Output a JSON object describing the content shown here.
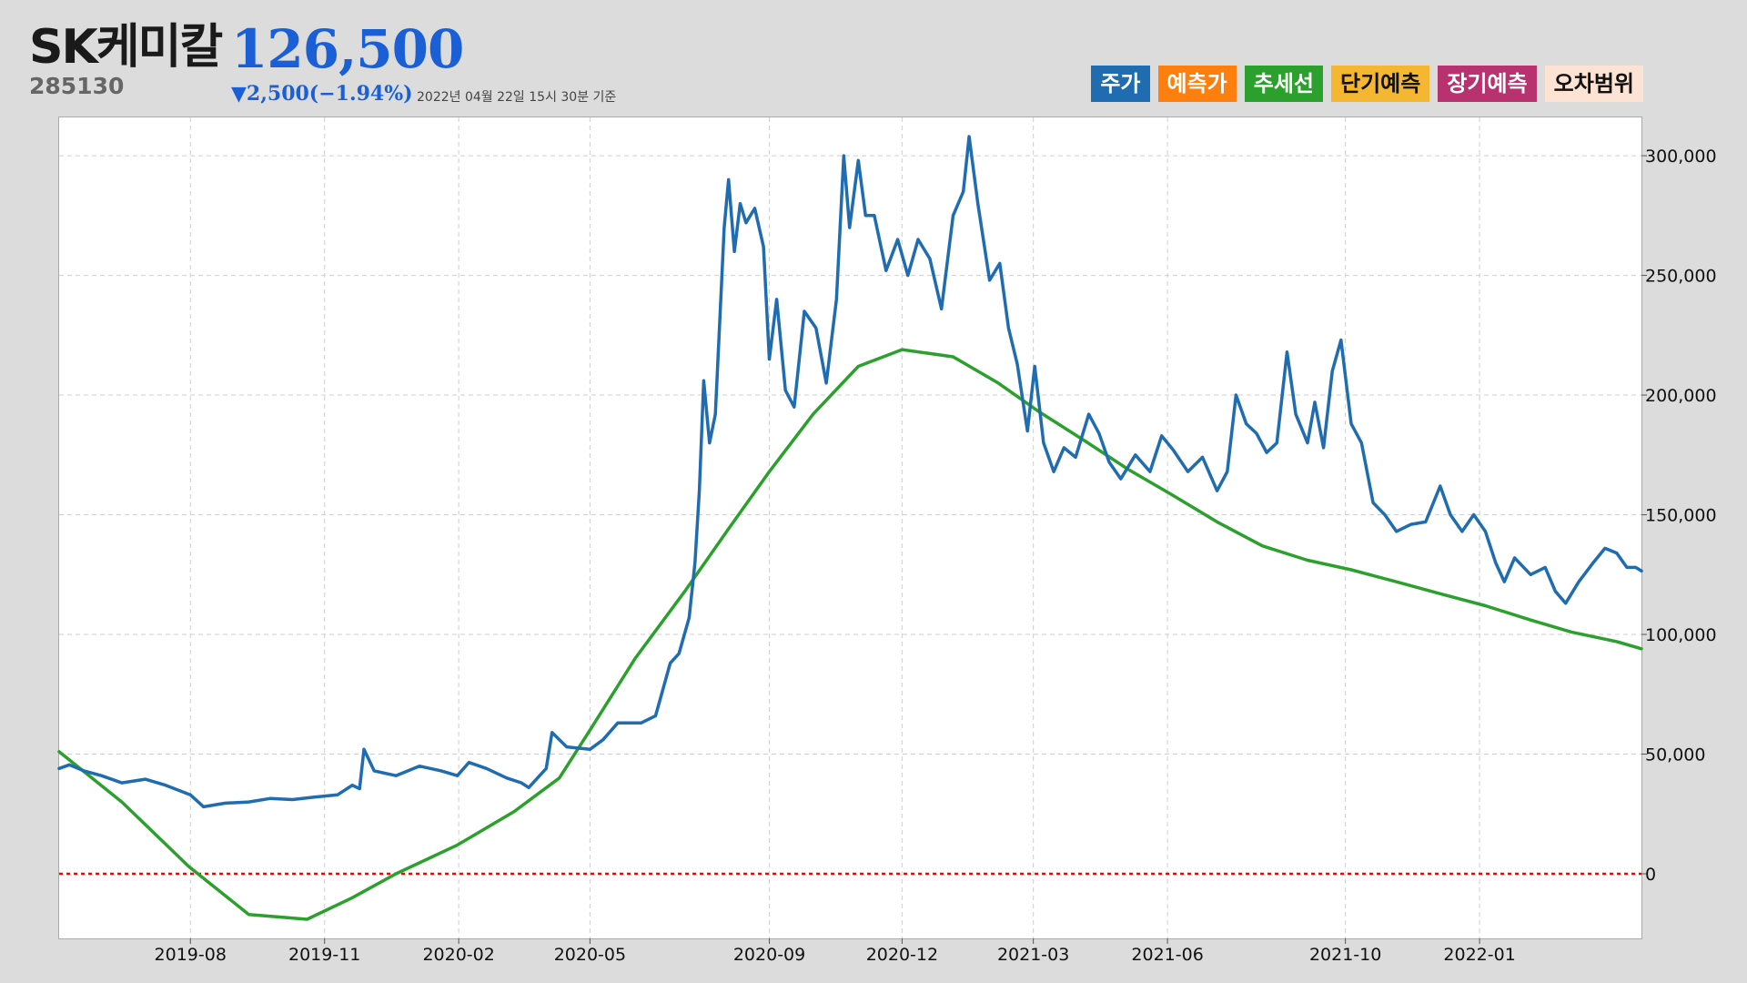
{
  "stock": {
    "name": "SK케미칼",
    "code": "285130",
    "price": "126,500",
    "change": "▼2,500(−1.94%)",
    "as_of": "2022년 04월 22일 15시 30분 기준"
  },
  "legend": [
    {
      "label": "주가",
      "color": "#1f6cb0",
      "text_color": "#ffffff"
    },
    {
      "label": "예측가",
      "color": "#ff7f0e",
      "text_color": "#ffffff"
    },
    {
      "label": "추세선",
      "color": "#2ca02c",
      "text_color": "#ffffff"
    },
    {
      "label": "단기예측",
      "color": "#f5b731",
      "text_color": "#111111"
    },
    {
      "label": "장기예측",
      "color": "#b83270",
      "text_color": "#ffffff"
    },
    {
      "label": "오차범위",
      "color": "#fde3d4",
      "text_color": "#111111"
    }
  ],
  "chart_data": {
    "type": "line",
    "x_ticks": [
      "2019-08",
      "2019-11",
      "2020-02",
      "2020-05",
      "2020-09",
      "2020-12",
      "2021-03",
      "2021-06",
      "2021-10",
      "2022-01"
    ],
    "y_ticks": [
      "0",
      "50,000",
      "100,000",
      "150,000",
      "200,000",
      "250,000",
      "300,000"
    ],
    "ylim": [
      -27000,
      316000
    ],
    "xlim": [
      "2019-05-03",
      "2022-04-22"
    ],
    "grid": true,
    "zero_line_color": "#ff0000",
    "series": [
      {
        "name": "주가",
        "color": "#1f6cb0",
        "points": [
          [
            "2019-05-03",
            44000
          ],
          [
            "2019-05-10",
            45500
          ],
          [
            "2019-05-20",
            43000
          ],
          [
            "2019-06-01",
            41000
          ],
          [
            "2019-06-15",
            38000
          ],
          [
            "2019-07-01",
            39500
          ],
          [
            "2019-07-15",
            37000
          ],
          [
            "2019-08-01",
            33000
          ],
          [
            "2019-08-10",
            28000
          ],
          [
            "2019-08-25",
            29500
          ],
          [
            "2019-09-10",
            30000
          ],
          [
            "2019-09-25",
            31500
          ],
          [
            "2019-10-10",
            31000
          ],
          [
            "2019-10-25",
            32000
          ],
          [
            "2019-11-10",
            33000
          ],
          [
            "2019-11-20",
            37000
          ],
          [
            "2019-11-25",
            35500
          ],
          [
            "2019-11-28",
            52000
          ],
          [
            "2019-12-05",
            43000
          ],
          [
            "2019-12-20",
            41000
          ],
          [
            "2020-01-05",
            45000
          ],
          [
            "2020-01-20",
            43000
          ],
          [
            "2020-01-31",
            41000
          ],
          [
            "2020-02-08",
            46500
          ],
          [
            "2020-02-20",
            44000
          ],
          [
            "2020-03-05",
            40000
          ],
          [
            "2020-03-15",
            38000
          ],
          [
            "2020-03-20",
            36000
          ],
          [
            "2020-04-01",
            44000
          ],
          [
            "2020-04-05",
            59000
          ],
          [
            "2020-04-15",
            53000
          ],
          [
            "2020-05-01",
            52000
          ],
          [
            "2020-05-10",
            56000
          ],
          [
            "2020-05-20",
            63000
          ],
          [
            "2020-06-05",
            63000
          ],
          [
            "2020-06-15",
            66000
          ],
          [
            "2020-06-25",
            88000
          ],
          [
            "2020-07-01",
            92000
          ],
          [
            "2020-07-08",
            107000
          ],
          [
            "2020-07-12",
            130000
          ],
          [
            "2020-07-15",
            160000
          ],
          [
            "2020-07-18",
            206000
          ],
          [
            "2020-07-22",
            180000
          ],
          [
            "2020-07-26",
            192000
          ],
          [
            "2020-08-01",
            270000
          ],
          [
            "2020-08-04",
            290000
          ],
          [
            "2020-08-08",
            260000
          ],
          [
            "2020-08-12",
            280000
          ],
          [
            "2020-08-16",
            272000
          ],
          [
            "2020-08-22",
            278000
          ],
          [
            "2020-08-28",
            262000
          ],
          [
            "2020-09-01",
            215000
          ],
          [
            "2020-09-06",
            240000
          ],
          [
            "2020-09-12",
            202000
          ],
          [
            "2020-09-18",
            195000
          ],
          [
            "2020-09-25",
            235000
          ],
          [
            "2020-10-03",
            228000
          ],
          [
            "2020-10-10",
            205000
          ],
          [
            "2020-10-17",
            240000
          ],
          [
            "2020-10-22",
            300000
          ],
          [
            "2020-10-26",
            270000
          ],
          [
            "2020-11-01",
            298000
          ],
          [
            "2020-11-06",
            275000
          ],
          [
            "2020-11-12",
            275000
          ],
          [
            "2020-11-20",
            252000
          ],
          [
            "2020-11-28",
            265000
          ],
          [
            "2020-12-05",
            250000
          ],
          [
            "2020-12-12",
            265000
          ],
          [
            "2020-12-20",
            257000
          ],
          [
            "2020-12-28",
            236000
          ],
          [
            "2021-01-05",
            275000
          ],
          [
            "2021-01-12",
            285000
          ],
          [
            "2021-01-16",
            308000
          ],
          [
            "2021-01-22",
            280000
          ],
          [
            "2021-01-30",
            248000
          ],
          [
            "2021-02-06",
            255000
          ],
          [
            "2021-02-12",
            228000
          ],
          [
            "2021-02-18",
            213000
          ],
          [
            "2021-02-25",
            185000
          ],
          [
            "2021-03-02",
            212000
          ],
          [
            "2021-03-08",
            180000
          ],
          [
            "2021-03-15",
            168000
          ],
          [
            "2021-03-22",
            178000
          ],
          [
            "2021-03-30",
            174000
          ],
          [
            "2021-04-08",
            192000
          ],
          [
            "2021-04-15",
            184000
          ],
          [
            "2021-04-22",
            172000
          ],
          [
            "2021-04-30",
            165000
          ],
          [
            "2021-05-10",
            175000
          ],
          [
            "2021-05-20",
            168000
          ],
          [
            "2021-05-28",
            183000
          ],
          [
            "2021-06-05",
            177000
          ],
          [
            "2021-06-15",
            168000
          ],
          [
            "2021-06-25",
            174000
          ],
          [
            "2021-07-05",
            160000
          ],
          [
            "2021-07-12",
            168000
          ],
          [
            "2021-07-18",
            200000
          ],
          [
            "2021-07-25",
            188000
          ],
          [
            "2021-08-01",
            184000
          ],
          [
            "2021-08-08",
            176000
          ],
          [
            "2021-08-15",
            180000
          ],
          [
            "2021-08-22",
            218000
          ],
          [
            "2021-08-28",
            192000
          ],
          [
            "2021-09-05",
            180000
          ],
          [
            "2021-09-10",
            197000
          ],
          [
            "2021-09-16",
            178000
          ],
          [
            "2021-09-22",
            210000
          ],
          [
            "2021-09-28",
            223000
          ],
          [
            "2021-10-05",
            188000
          ],
          [
            "2021-10-12",
            180000
          ],
          [
            "2021-10-20",
            155000
          ],
          [
            "2021-10-28",
            150000
          ],
          [
            "2021-11-05",
            143000
          ],
          [
            "2021-11-15",
            146000
          ],
          [
            "2021-11-25",
            147000
          ],
          [
            "2021-12-05",
            162000
          ],
          [
            "2021-12-12",
            150000
          ],
          [
            "2021-12-20",
            143000
          ],
          [
            "2021-12-28",
            150000
          ],
          [
            "2022-01-05",
            143000
          ],
          [
            "2022-01-12",
            130000
          ],
          [
            "2022-01-18",
            122000
          ],
          [
            "2022-01-25",
            132000
          ],
          [
            "2022-02-05",
            125000
          ],
          [
            "2022-02-15",
            128000
          ],
          [
            "2022-02-22",
            118000
          ],
          [
            "2022-03-01",
            113000
          ],
          [
            "2022-03-10",
            122000
          ],
          [
            "2022-03-20",
            130000
          ],
          [
            "2022-03-28",
            136000
          ],
          [
            "2022-04-05",
            134000
          ],
          [
            "2022-04-12",
            128000
          ],
          [
            "2022-04-18",
            128000
          ],
          [
            "2022-04-22",
            126500
          ]
        ]
      },
      {
        "name": "추세선",
        "color": "#2ca02c",
        "points": [
          [
            "2019-05-03",
            51000
          ],
          [
            "2019-06-15",
            30000
          ],
          [
            "2019-07-31",
            3000
          ],
          [
            "2019-09-10",
            -17000
          ],
          [
            "2019-10-20",
            -19000
          ],
          [
            "2019-11-20",
            -10000
          ],
          [
            "2019-12-20",
            0
          ],
          [
            "2020-01-31",
            12000
          ],
          [
            "2020-03-10",
            26000
          ],
          [
            "2020-04-10",
            40000
          ],
          [
            "2020-05-01",
            60000
          ],
          [
            "2020-06-01",
            90000
          ],
          [
            "2020-07-05",
            118000
          ],
          [
            "2020-08-05",
            145000
          ],
          [
            "2020-09-01",
            168000
          ],
          [
            "2020-10-01",
            192000
          ],
          [
            "2020-11-01",
            212000
          ],
          [
            "2020-12-01",
            219000
          ],
          [
            "2021-01-05",
            216000
          ],
          [
            "2021-02-05",
            205000
          ],
          [
            "2021-03-05",
            193000
          ],
          [
            "2021-04-05",
            181000
          ],
          [
            "2021-05-05",
            169000
          ],
          [
            "2021-06-05",
            158000
          ],
          [
            "2021-07-05",
            147000
          ],
          [
            "2021-08-05",
            137000
          ],
          [
            "2021-09-05",
            131000
          ],
          [
            "2021-10-05",
            127000
          ],
          [
            "2021-11-05",
            122000
          ],
          [
            "2021-12-05",
            117000
          ],
          [
            "2022-01-05",
            112000
          ],
          [
            "2022-02-05",
            106000
          ],
          [
            "2022-03-05",
            101000
          ],
          [
            "2022-04-05",
            97000
          ],
          [
            "2022-04-22",
            94000
          ]
        ]
      }
    ]
  }
}
